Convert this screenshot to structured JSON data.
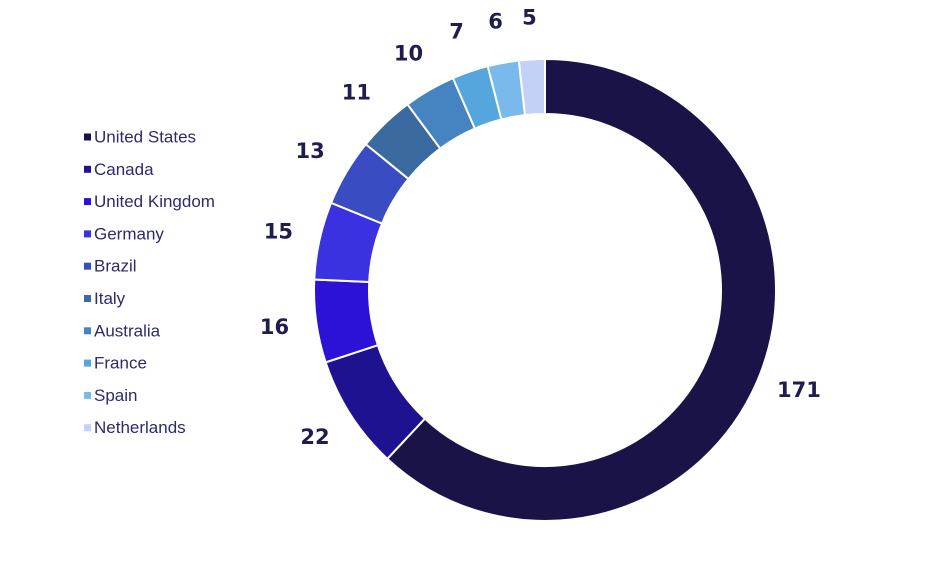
{
  "chart_data": {
    "type": "pie",
    "donut": true,
    "title": "",
    "legend_position": "left",
    "categories": [
      "United States",
      "Canada",
      "United Kingdom",
      "Germany",
      "Brazil",
      "Italy",
      "Australia",
      "France",
      "Spain",
      "Netherlands"
    ],
    "values": [
      171,
      22,
      16,
      15,
      13,
      11,
      10,
      7,
      6,
      5
    ],
    "colors": [
      "#1a1347",
      "#1f1290",
      "#2c12d6",
      "#3a32e0",
      "#3a4cc2",
      "#3a6aa0",
      "#4584c0",
      "#55a6dc",
      "#7ab9ec",
      "#c4d1f7"
    ],
    "data_labels": [
      "171",
      "22",
      "16",
      "15",
      "13",
      "11",
      "10",
      "7",
      "6",
      "5"
    ]
  }
}
